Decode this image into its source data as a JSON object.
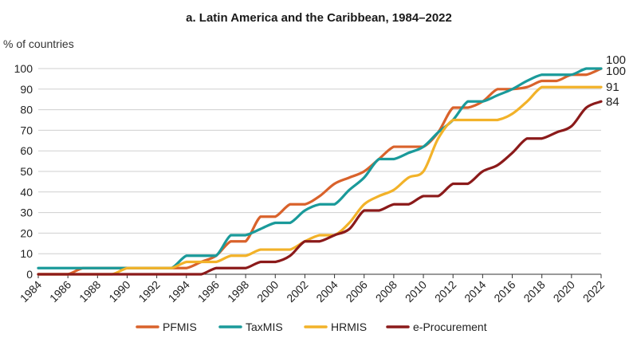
{
  "chart_data": {
    "type": "line",
    "title": "a. Latin America and the Caribbean, 1984–2022",
    "ylabel": "% of countries",
    "xlabel": "",
    "xlim": [
      1984,
      2022
    ],
    "ylim": [
      0,
      100
    ],
    "yticks": [
      0,
      10,
      20,
      30,
      40,
      50,
      60,
      70,
      80,
      90,
      100
    ],
    "xticks": [
      1984,
      1986,
      1988,
      1990,
      1992,
      1994,
      1996,
      1998,
      2000,
      2002,
      2004,
      2006,
      2008,
      2010,
      2012,
      2014,
      2016,
      2018,
      2020,
      2022
    ],
    "grid": true,
    "legend_position": "bottom",
    "x": [
      1984,
      1985,
      1986,
      1987,
      1988,
      1989,
      1990,
      1991,
      1992,
      1993,
      1994,
      1995,
      1996,
      1997,
      1998,
      1999,
      2000,
      2001,
      2002,
      2003,
      2004,
      2005,
      2006,
      2007,
      2008,
      2009,
      2010,
      2011,
      2012,
      2013,
      2014,
      2015,
      2016,
      2017,
      2018,
      2019,
      2020,
      2021,
      2022
    ],
    "series": [
      {
        "name": "PFMIS",
        "color": "#d9622b",
        "end_label": "100",
        "values": [
          0,
          0,
          0,
          3,
          3,
          3,
          3,
          3,
          3,
          3,
          3,
          6,
          9,
          16,
          16,
          28,
          28,
          34,
          34,
          38,
          44,
          47,
          50,
          56,
          62,
          62,
          62,
          69,
          81,
          81,
          84,
          90,
          90,
          91,
          94,
          94,
          97,
          97,
          100
        ]
      },
      {
        "name": "TaxMIS",
        "color": "#1a9a9a",
        "end_label": "100",
        "values": [
          3,
          3,
          3,
          3,
          3,
          3,
          3,
          3,
          3,
          3,
          9,
          9,
          9,
          19,
          19,
          22,
          25,
          25,
          31,
          34,
          34,
          41,
          47,
          56,
          56,
          59,
          62,
          69,
          75,
          84,
          84,
          87,
          90,
          94,
          97,
          97,
          97,
          100,
          100
        ]
      },
      {
        "name": "HRMIS",
        "color": "#f2b229",
        "end_label": "91",
        "values": [
          0,
          0,
          0,
          0,
          0,
          0,
          3,
          3,
          3,
          3,
          6,
          6,
          6,
          9,
          9,
          12,
          12,
          12,
          16,
          19,
          19,
          25,
          34,
          38,
          41,
          47,
          50,
          66,
          75,
          75,
          75,
          75,
          78,
          84,
          91,
          91,
          91,
          91,
          91
        ]
      },
      {
        "name": "e-Procurement",
        "color": "#8b1a1a",
        "end_label": "84",
        "values": [
          0,
          0,
          0,
          0,
          0,
          0,
          0,
          0,
          0,
          0,
          0,
          0,
          3,
          3,
          3,
          6,
          6,
          9,
          16,
          16,
          19,
          22,
          31,
          31,
          34,
          34,
          38,
          38,
          44,
          44,
          50,
          53,
          59,
          66,
          66,
          69,
          72,
          81,
          84
        ]
      }
    ]
  }
}
